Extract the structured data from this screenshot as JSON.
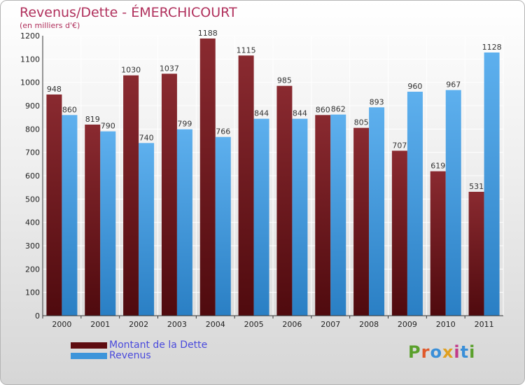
{
  "chart_title": "Revenus/Dette - ÉMERCHICOURT",
  "chart_subtitle": "(en milliers d'€)",
  "logo": "Proxiti",
  "chart_data": {
    "type": "bar",
    "title": "Revenus/Dette - ÉMERCHICOURT",
    "subtitle": "(en milliers d'€)",
    "categories": [
      "2000",
      "2001",
      "2002",
      "2003",
      "2004",
      "2005",
      "2006",
      "2007",
      "2008",
      "2009",
      "2010",
      "2011"
    ],
    "series": [
      {
        "name": "Montant de la Dette",
        "color": "#7a1f26",
        "values": [
          948,
          819,
          1030,
          1037,
          1188,
          1115,
          985,
          860,
          805,
          707,
          619,
          531
        ]
      },
      {
        "name": "Revenus",
        "color": "#56a7e6",
        "values": [
          860,
          790,
          740,
          799,
          766,
          844,
          844,
          862,
          893,
          960,
          967,
          1128
        ]
      }
    ],
    "ylim": [
      0,
      1200
    ],
    "yticks": [
      0,
      100,
      200,
      300,
      400,
      500,
      600,
      700,
      800,
      900,
      1000,
      1100,
      1200
    ],
    "grid": true,
    "legend": "bottom-left"
  }
}
